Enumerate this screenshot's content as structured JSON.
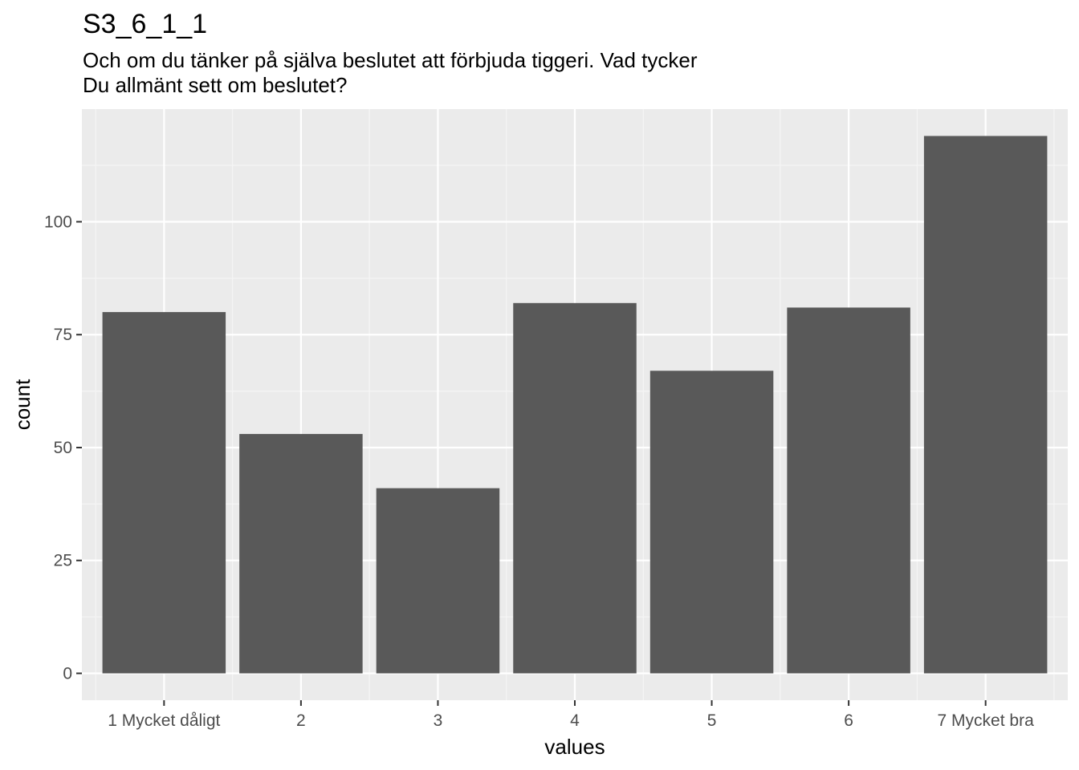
{
  "chart_data": {
    "type": "bar",
    "title": "S3_6_1_1",
    "subtitle_lines": [
      "Och om du tänker på själva beslutet att förbjuda tiggeri. Vad tycker",
      "Du allmänt sett om beslutet?"
    ],
    "xlabel": "values",
    "ylabel": "count",
    "categories": [
      "1 Mycket dåligt",
      "2",
      "3",
      "4",
      "5",
      "6",
      "7 Mycket bra"
    ],
    "values": [
      80,
      53,
      41,
      82,
      67,
      81,
      119
    ],
    "ylim": [
      -5.95,
      124.95
    ],
    "yticks": [
      0,
      25,
      50,
      75,
      100
    ],
    "ytick_labels": [
      "0",
      "25",
      "50",
      "75",
      "100"
    ],
    "grid": true,
    "colors": {
      "bar": "#595959",
      "panel": "#ebebeb",
      "grid_major": "#ffffff",
      "grid_minor": "#f5f5f5"
    }
  }
}
